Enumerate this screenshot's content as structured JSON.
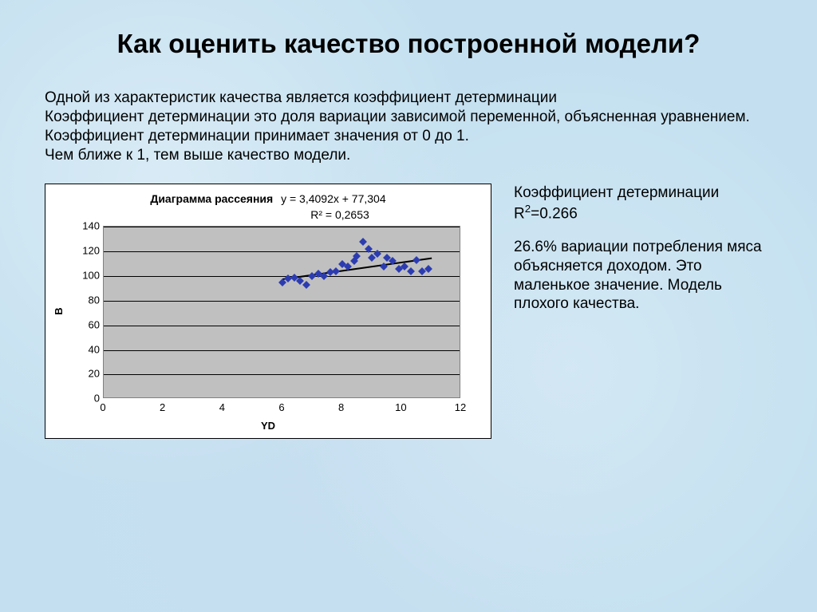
{
  "title": "Как оценить качество построенной модели?",
  "body_text": "Одной из характеристик качества является коэффициент детерминации\nКоэффициент детерминации это доля вариации зависимой переменной, объясненная уравнением.\nКоэффициент детерминации принимает значения от 0 до 1.\nЧем ближе к 1, тем выше качество модели.",
  "right": {
    "p1a": "Коэффициент детерминации R",
    "p1b": "=0.266",
    "p2": "26.6% вариации потребления мяса объясняется доходом. Это маленькое значение. Модель плохого качества."
  },
  "chart": {
    "type": "scatter",
    "title": "Диаграмма рассеяния",
    "equation": "y = 3,4092x + 77,304",
    "rsq": "R² = 0,2653",
    "xlabel": "YD",
    "ylabel": "B",
    "xlim": [
      0,
      12
    ],
    "ylim": [
      0,
      140
    ],
    "xtick_step": 2,
    "ytick_step": 20,
    "xticks": [
      0,
      2,
      4,
      6,
      8,
      10,
      12
    ],
    "yticks": [
      0,
      20,
      40,
      60,
      80,
      100,
      120,
      140
    ],
    "plot_bg": "#c0c0c0",
    "gridline_color": "#000000",
    "marker_color": "#2c3cb0",
    "marker_style": "diamond",
    "marker_size": 7,
    "trend_slope": 3.4092,
    "trend_intercept": 77.304,
    "trend_color": "#000000",
    "trend_width": 2,
    "trend_xrange": [
      6.0,
      11.0
    ],
    "points": [
      [
        6.0,
        95
      ],
      [
        6.2,
        98
      ],
      [
        6.4,
        99
      ],
      [
        6.6,
        96
      ],
      [
        6.8,
        93
      ],
      [
        7.0,
        100
      ],
      [
        7.2,
        102
      ],
      [
        7.4,
        100
      ],
      [
        7.6,
        103
      ],
      [
        7.8,
        104
      ],
      [
        8.0,
        110
      ],
      [
        8.2,
        108
      ],
      [
        8.4,
        112
      ],
      [
        8.5,
        116
      ],
      [
        8.7,
        128
      ],
      [
        8.9,
        122
      ],
      [
        9.0,
        115
      ],
      [
        9.2,
        118
      ],
      [
        9.4,
        108
      ],
      [
        9.5,
        115
      ],
      [
        9.7,
        112
      ],
      [
        9.9,
        106
      ],
      [
        10.1,
        108
      ],
      [
        10.3,
        104
      ],
      [
        10.5,
        113
      ],
      [
        10.7,
        104
      ],
      [
        10.9,
        106
      ]
    ]
  },
  "colors": {
    "slide_bg": "#c4e0f0",
    "chart_bg": "#ffffff",
    "chart_border": "#000000",
    "text": "#000000"
  },
  "fonts": {
    "title_size": 33,
    "body_size": 19,
    "chart_title_size": 14,
    "tick_size": 13
  }
}
